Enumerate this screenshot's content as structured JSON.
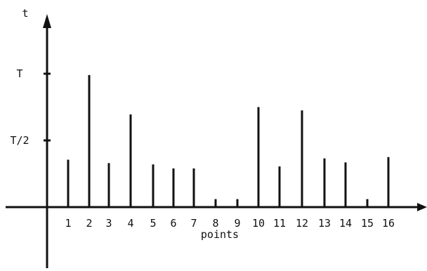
{
  "chart_data": {
    "type": "bar",
    "xlabel": "points",
    "ylabel": "t",
    "categories": [
      "1",
      "2",
      "3",
      "4",
      "5",
      "6",
      "7",
      "8",
      "9",
      "10",
      "11",
      "12",
      "13",
      "14",
      "15",
      "16"
    ],
    "values": [
      0.71,
      1.98,
      0.66,
      1.39,
      0.64,
      0.58,
      0.58,
      0.12,
      0.12,
      1.5,
      0.61,
      1.45,
      0.73,
      0.67,
      0.12,
      0.75
    ],
    "yticks": [
      {
        "value": 1,
        "label": "T/2"
      },
      {
        "value": 2,
        "label": "T"
      }
    ],
    "ylim": [
      -0.9,
      2.9
    ],
    "grid": false,
    "colors": {
      "ink": "#111111"
    }
  }
}
